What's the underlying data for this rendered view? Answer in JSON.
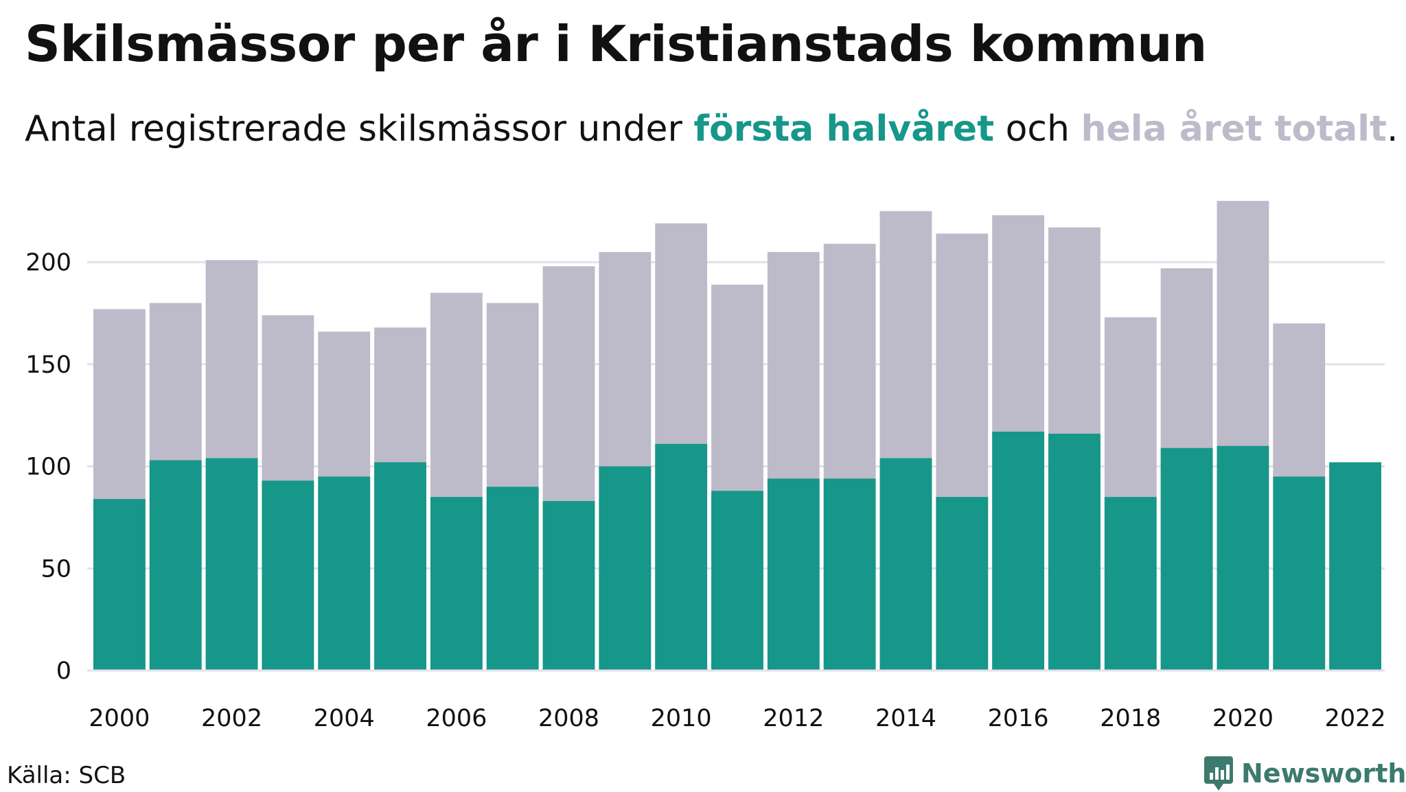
{
  "title": "Skilsmässor per år i Kristianstads kommun",
  "subtitle": {
    "prefix": "Antal registrerade skilsmässor under ",
    "first_half": "första halvåret",
    "middle": " och ",
    "full_year": "hela året totalt",
    "suffix": "."
  },
  "source": "Källa: SCB",
  "brand": "Newsworthy",
  "colors": {
    "first_half": "#17968a",
    "full_year": "#bdbbc9",
    "grid": "#e2e1e8",
    "brand": "#3c7a6e"
  },
  "chart_data": {
    "type": "bar",
    "categories": [
      "2000",
      "2001",
      "2002",
      "2003",
      "2004",
      "2005",
      "2006",
      "2007",
      "2008",
      "2009",
      "2010",
      "2011",
      "2012",
      "2013",
      "2014",
      "2015",
      "2016",
      "2017",
      "2018",
      "2019",
      "2020",
      "2021",
      "2022"
    ],
    "x_tick_labels": [
      "2000",
      "2002",
      "2004",
      "2006",
      "2008",
      "2010",
      "2012",
      "2014",
      "2016",
      "2018",
      "2020",
      "2022"
    ],
    "y_ticks": [
      0,
      50,
      100,
      150,
      200
    ],
    "ylim": [
      0,
      235
    ],
    "grid": true,
    "series": [
      {
        "name": "hela året totalt",
        "values": [
          177,
          180,
          201,
          174,
          166,
          168,
          185,
          180,
          198,
          205,
          219,
          189,
          205,
          209,
          225,
          214,
          223,
          217,
          173,
          197,
          230,
          170,
          null
        ]
      },
      {
        "name": "första halvåret",
        "values": [
          84,
          103,
          104,
          93,
          95,
          102,
          85,
          90,
          83,
          100,
          111,
          88,
          94,
          94,
          104,
          85,
          117,
          116,
          85,
          109,
          110,
          95,
          102
        ]
      }
    ]
  }
}
